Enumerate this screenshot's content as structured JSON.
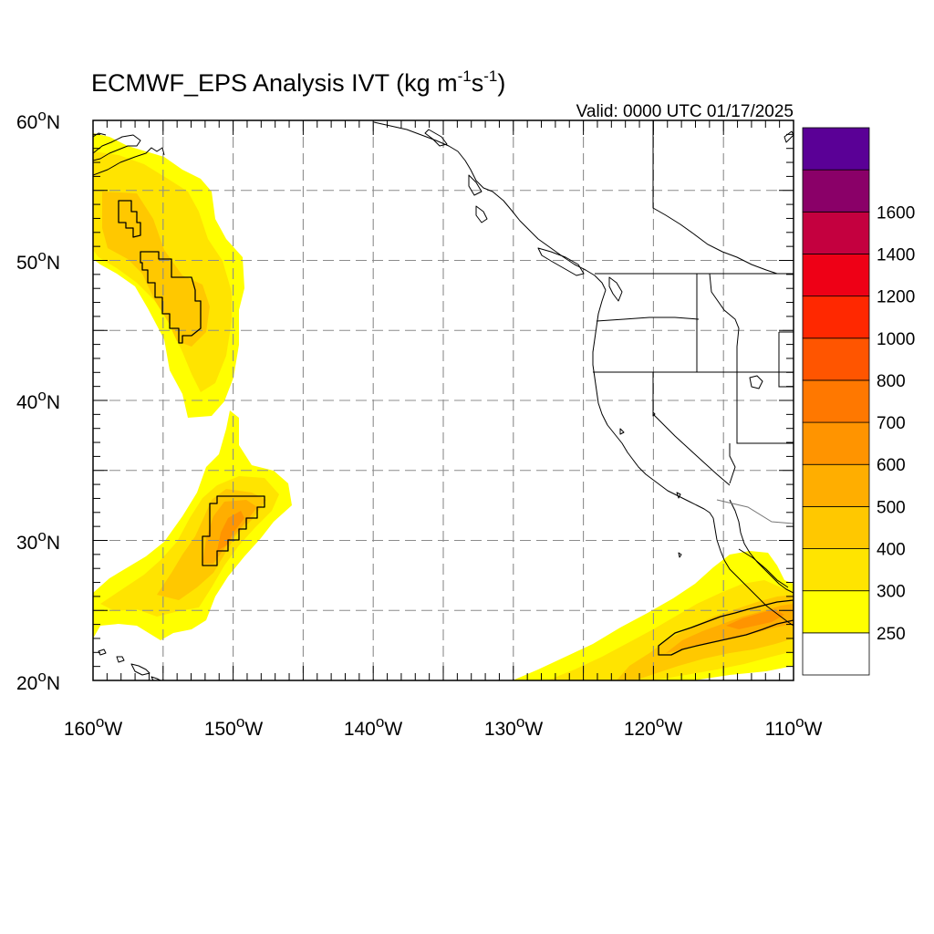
{
  "title": {
    "prefix": "ECMWF_EPS Analysis IVT (kg m",
    "exp1": "-1",
    "mid": "s",
    "exp2": "-1",
    "suffix": ")"
  },
  "valid_text": "Valid: 0000 UTC 01/17/2025",
  "map": {
    "projection": "equirectangular",
    "lon_range": [
      -160,
      -110
    ],
    "lat_range": [
      20,
      60
    ],
    "grid_interval_deg": 5,
    "grid_style": "dashed",
    "lat_labels": [
      {
        "deg": "60",
        "hemi": "N"
      },
      {
        "deg": "50",
        "hemi": "N"
      },
      {
        "deg": "40",
        "hemi": "N"
      },
      {
        "deg": "30",
        "hemi": "N"
      },
      {
        "deg": "20",
        "hemi": "N"
      }
    ],
    "lon_labels": [
      {
        "deg": "160",
        "hemi": "W"
      },
      {
        "deg": "150",
        "hemi": "W"
      },
      {
        "deg": "140",
        "hemi": "W"
      },
      {
        "deg": "130",
        "hemi": "W"
      },
      {
        "deg": "120",
        "hemi": "W"
      },
      {
        "deg": "110",
        "hemi": "W"
      }
    ]
  },
  "colorbar": {
    "units": "kg m-1 s-1",
    "levels": [
      "250",
      "300",
      "400",
      "500",
      "600",
      "700",
      "800",
      "1000",
      "1200",
      "1400",
      "1600"
    ],
    "colors": [
      "#ffffff",
      "#ffff00",
      "#ffe400",
      "#ffc800",
      "#ffae00",
      "#ff9400",
      "#ff7800",
      "#ff5500",
      "#ff2800",
      "#ee0016",
      "#c4003f",
      "#8a0068",
      "#5a0096"
    ]
  },
  "features": {
    "highlighted_contour_level": "500",
    "atmospheric_rivers": [
      "northern plume near 160W-150W, 40N-59N",
      "central plume near 160W-145W, 23N-39N",
      "southern plume near 130W-110W, 20N-29N"
    ]
  }
}
